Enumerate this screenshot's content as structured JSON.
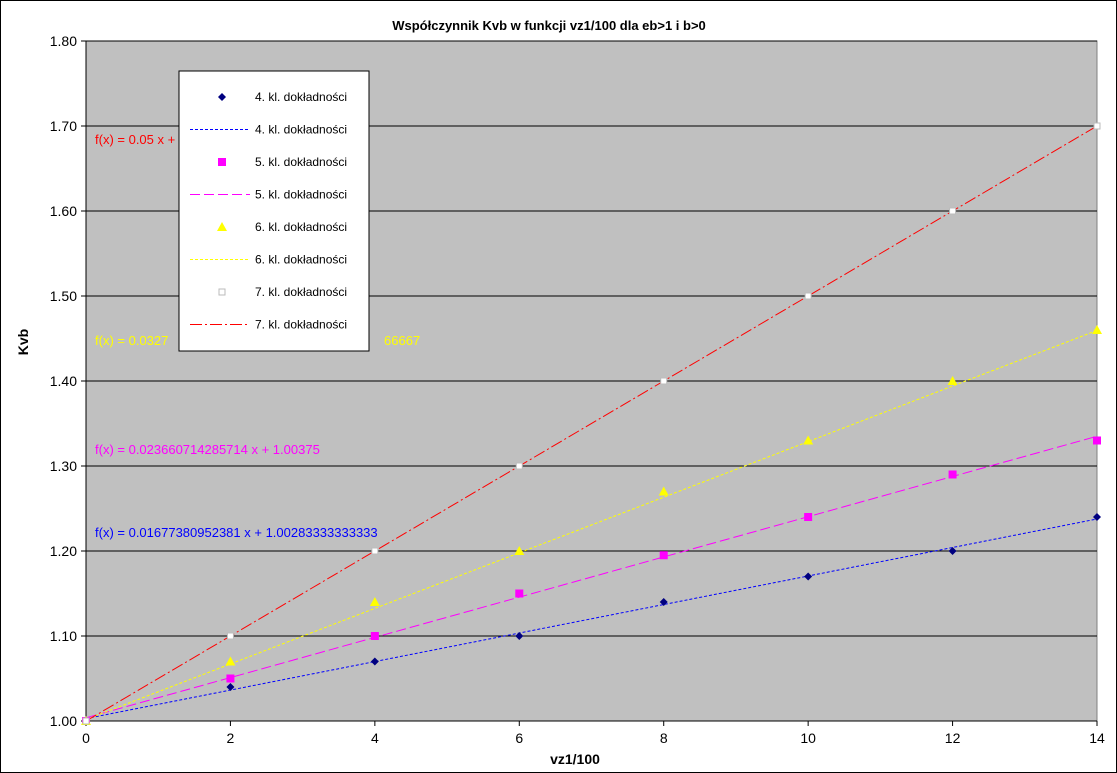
{
  "chart_data": {
    "type": "scatter",
    "title": "Współczynnik Kvb w funkcji vz1/100 dla eb>1 i b>0",
    "xlabel": "vz1/100",
    "ylabel": "Kvb",
    "xlim": [
      0,
      14
    ],
    "ylim": [
      1.0,
      1.8
    ],
    "x_ticks": [
      "0",
      "2",
      "4",
      "6",
      "8",
      "10",
      "12",
      "14"
    ],
    "y_ticks": [
      "1.00",
      "1.10",
      "1.20",
      "1.30",
      "1.40",
      "1.50",
      "1.60",
      "1.70",
      "1.80"
    ],
    "grid": "horizontal",
    "plot_background": "#c0c0c0",
    "legend_position": "top-left",
    "x": [
      0,
      2,
      4,
      6,
      8,
      10,
      12,
      14
    ],
    "series": [
      {
        "name": "4. kl. dokładności",
        "color": "#000080",
        "trend_color": "#0000ff",
        "marker": "diamond",
        "line_style": "dotted",
        "values": [
          1.0,
          1.04,
          1.07,
          1.1,
          1.14,
          1.17,
          1.2,
          1.24
        ],
        "trend": {
          "slope": 0.01677380952381,
          "intercept": 1.00283333333333
        },
        "equation": "f(x) = 0.01677380952381 x + 1.00283333333333"
      },
      {
        "name": "5. kl. dokładności",
        "color": "#ff00ff",
        "trend_color": "#ff00ff",
        "marker": "square",
        "line_style": "dashed",
        "values": [
          1.0,
          1.05,
          1.1,
          1.15,
          1.195,
          1.24,
          1.29,
          1.33
        ],
        "trend": {
          "slope": 0.023660714285714,
          "intercept": 1.00375
        },
        "equation": "f(x) = 0.023660714285714 x + 1.00375"
      },
      {
        "name": "6. kl. dokładności",
        "color": "#ffff00",
        "trend_color": "#ffff00",
        "marker": "triangle",
        "line_style": "dotted",
        "values": [
          1.0,
          1.07,
          1.14,
          1.2,
          1.27,
          1.33,
          1.4,
          1.46
        ],
        "trend": {
          "slope": 0.0327,
          "intercept": 1.0017
        },
        "equation": "f(x) = 0.0327",
        "equation_tail": "66667"
      },
      {
        "name": "7. kl. dokładności",
        "color": "#ffffff",
        "trend_color": "#ff0000",
        "marker": "square-open",
        "line_style": "dashdot",
        "values": [
          1.0,
          1.1,
          1.2,
          1.3,
          1.4,
          1.5,
          1.6,
          1.7
        ],
        "trend": {
          "slope": 0.05,
          "intercept": 1.0
        },
        "equation": "f(x) = 0.05 x +"
      }
    ]
  }
}
